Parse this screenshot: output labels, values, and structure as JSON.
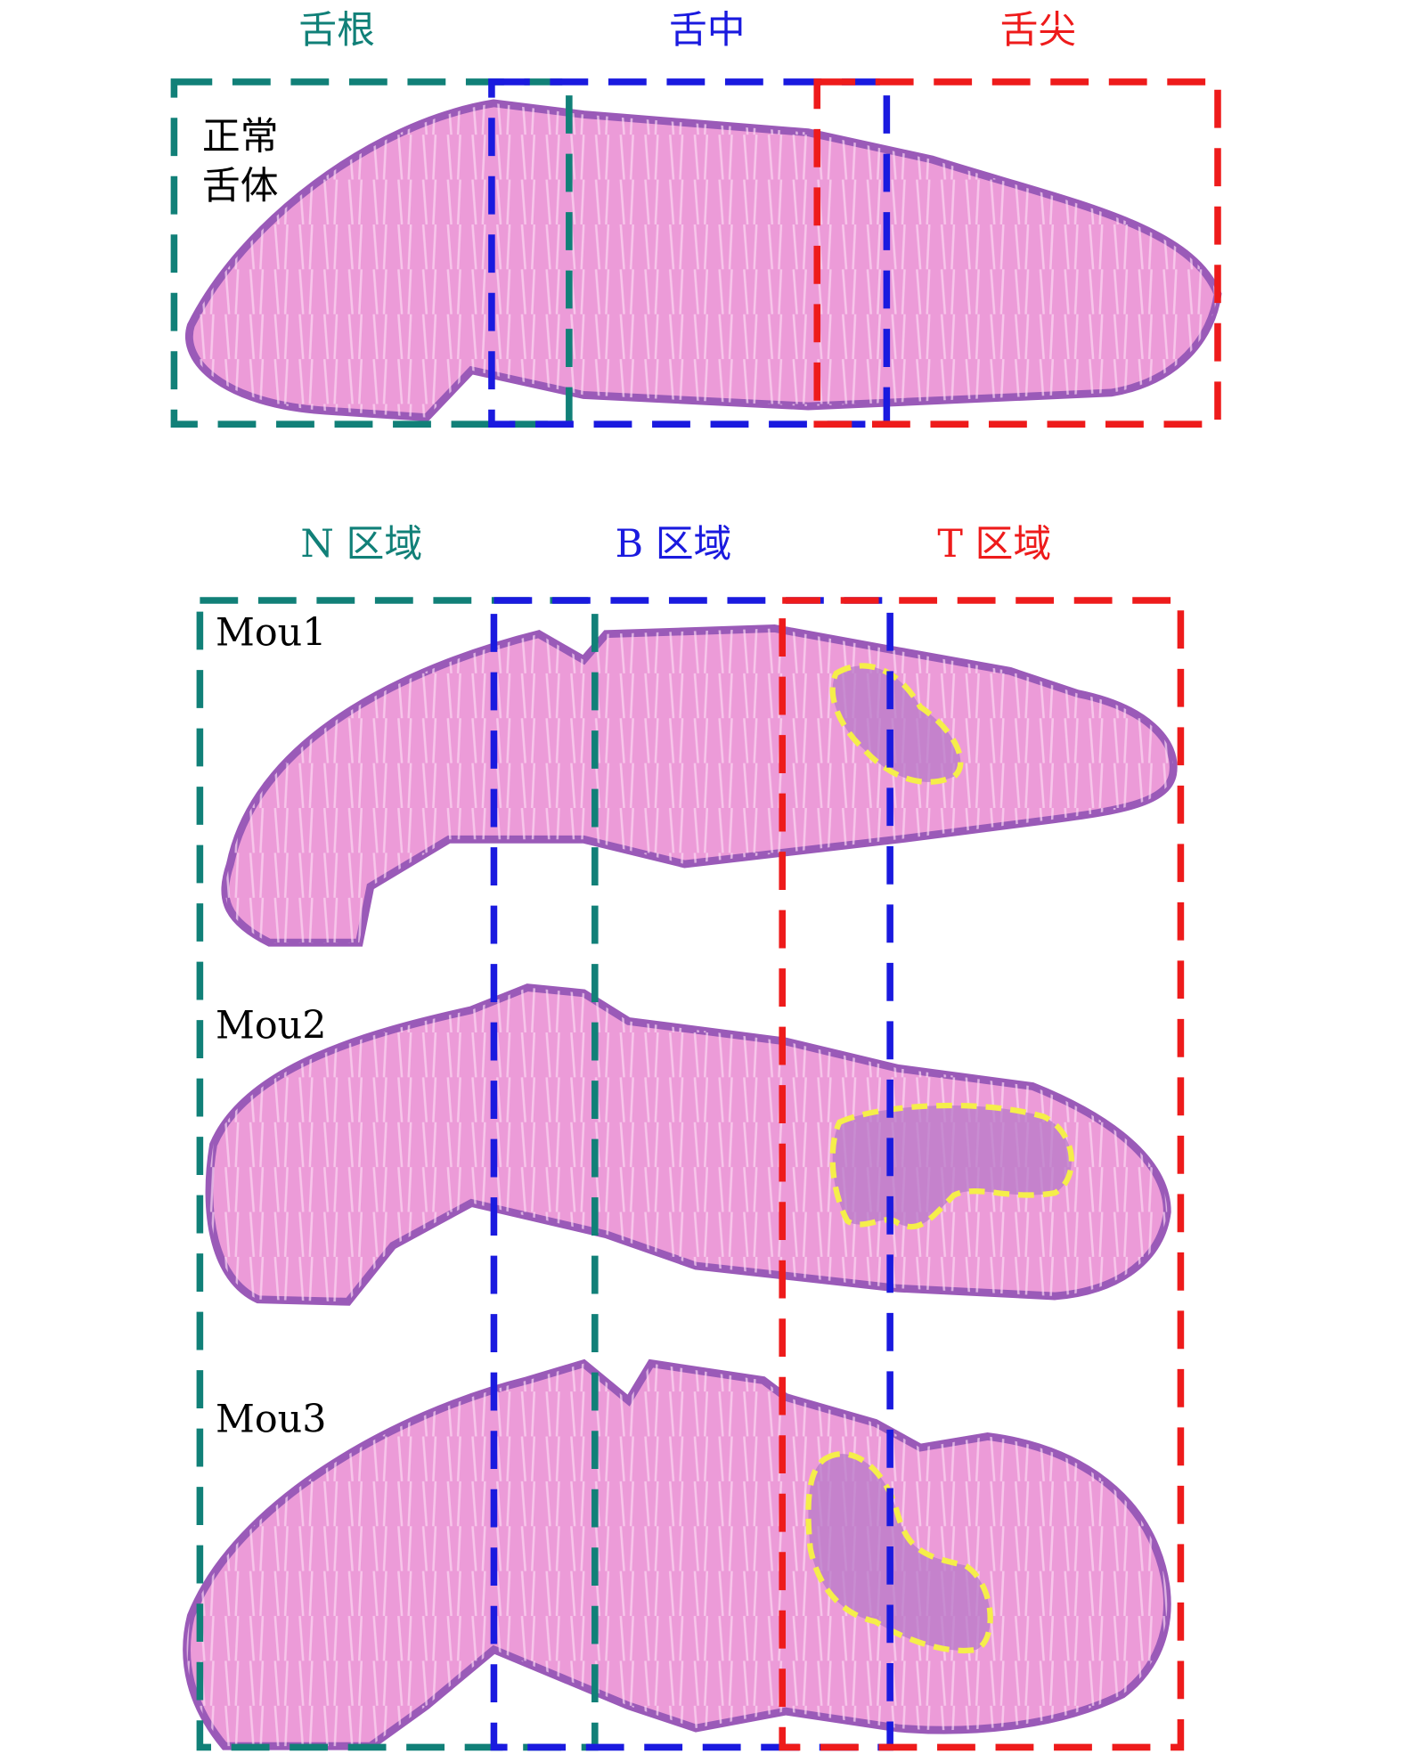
{
  "header": {
    "regions": [
      "舌根",
      "舌中",
      "舌尖"
    ],
    "normal_label": [
      "正常",
      "舌体"
    ]
  },
  "lower": {
    "regions": [
      "N 区域",
      "B 区域",
      "T 区域"
    ],
    "samples": [
      "Mou1",
      "Mou2",
      "Mou3"
    ]
  }
}
